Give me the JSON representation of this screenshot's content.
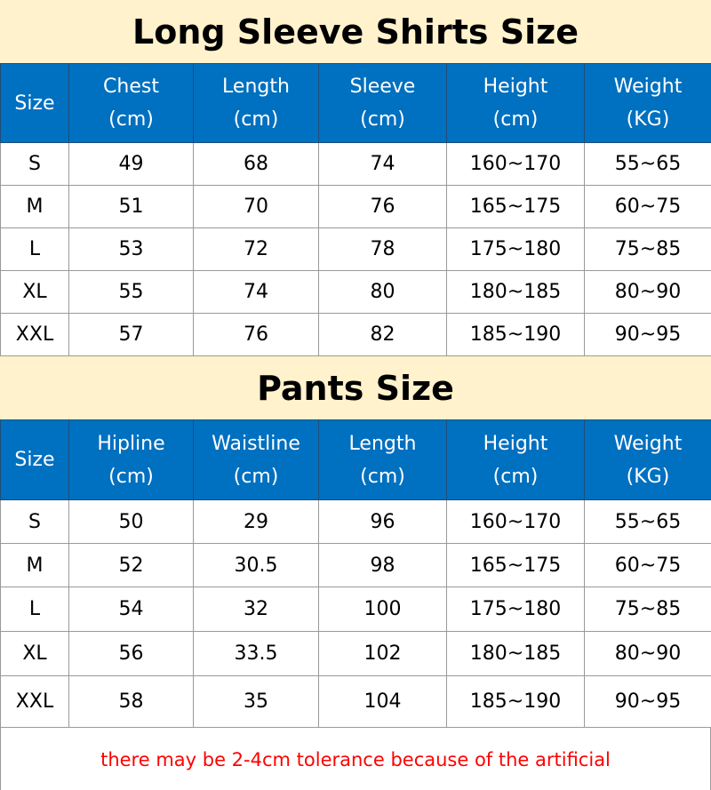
{
  "shirts": {
    "title": "Long Sleeve Shirts Size",
    "headers": [
      [
        "Size",
        ""
      ],
      [
        "Chest",
        "(cm)"
      ],
      [
        "Length",
        "(cm)"
      ],
      [
        "Sleeve",
        "(cm)"
      ],
      [
        "Height",
        "(cm)"
      ],
      [
        "Weight",
        "(KG)"
      ]
    ],
    "rows": [
      [
        "S",
        "49",
        "68",
        "74",
        "160~170",
        "55~65"
      ],
      [
        "M",
        "51",
        "70",
        "76",
        "165~175",
        "60~75"
      ],
      [
        "L",
        "53",
        "72",
        "78",
        "175~180",
        "75~85"
      ],
      [
        "XL",
        "55",
        "74",
        "80",
        "180~185",
        "80~90"
      ],
      [
        "XXL",
        "57",
        "76",
        "82",
        "185~190",
        "90~95"
      ]
    ]
  },
  "pants": {
    "title": "Pants Size",
    "headers": [
      [
        "Size",
        ""
      ],
      [
        "Hipline",
        "(cm)"
      ],
      [
        "Waistline",
        "(cm)"
      ],
      [
        "Length",
        "(cm)"
      ],
      [
        "Height",
        "(cm)"
      ],
      [
        "Weight",
        "(KG)"
      ]
    ],
    "rows": [
      [
        "S",
        "50",
        "29",
        "96",
        "160~170",
        "55~65"
      ],
      [
        "M",
        "52",
        "30.5",
        "98",
        "165~175",
        "60~75"
      ],
      [
        "L",
        "54",
        "32",
        "100",
        "175~180",
        "75~85"
      ],
      [
        "XL",
        "56",
        "33.5",
        "102",
        "180~185",
        "80~90"
      ],
      [
        "XXL",
        "58",
        "35",
        "104",
        "185~190",
        "90~95"
      ]
    ]
  },
  "footer_note": "there may be 2-4cm tolerance because of the artificial",
  "colors": {
    "header_bg": "#0070c0",
    "title_bg": "#fff2cc",
    "note": "#ff0000"
  }
}
